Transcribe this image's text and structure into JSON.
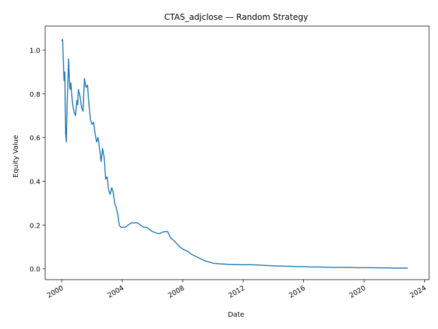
{
  "chart_data": {
    "type": "line",
    "title": "CTAS_adjclose — Random Strategy",
    "xlabel": "Date",
    "ylabel": "Equity Value",
    "x_ticks": [
      "2000",
      "2004",
      "2008",
      "2012",
      "2016",
      "2020",
      "2024"
    ],
    "y_ticks": [
      "0.0",
      "0.2",
      "0.4",
      "0.6",
      "0.8",
      "1.0"
    ],
    "xlim": [
      1998.9,
      2024.3
    ],
    "ylim": [
      -0.05,
      1.11
    ],
    "grid": false,
    "line_color": "#1f77b4",
    "series": [
      {
        "x": [
          2000.0,
          2000.05,
          2000.1,
          2000.15,
          2000.2,
          2000.25,
          2000.3,
          2000.35,
          2000.4,
          2000.45,
          2000.5,
          2000.55,
          2000.6,
          2000.7,
          2000.8,
          2000.9,
          2001.0,
          2001.05,
          2001.1,
          2001.2,
          2001.3,
          2001.4,
          2001.5,
          2001.6,
          2001.7,
          2001.8,
          2001.9,
          2002.0,
          2002.1,
          2002.2,
          2002.3,
          2002.4,
          2002.5,
          2002.6,
          2002.7,
          2002.8,
          2002.9,
          2003.0,
          2003.1,
          2003.2,
          2003.3,
          2003.4,
          2003.5,
          2003.6,
          2003.7,
          2003.8,
          2003.9,
          2004.0,
          2004.2,
          2004.4,
          2004.6,
          2004.8,
          2005.0,
          2005.2,
          2005.4,
          2005.6,
          2005.8,
          2006.0,
          2006.2,
          2006.4,
          2006.6,
          2006.8,
          2007.0,
          2007.2,
          2007.4,
          2007.6,
          2007.8,
          2008.0,
          2008.3,
          2008.6,
          2008.9,
          2009.2,
          2009.5,
          2009.8,
          2010.0,
          2010.5,
          2011.0,
          2011.5,
          2012.0,
          2012.5,
          2013.0,
          2013.5,
          2014.0,
          2014.5,
          2015.0,
          2015.5,
          2016.0,
          2016.5,
          2017.0,
          2017.5,
          2018.0,
          2018.5,
          2019.0,
          2019.5,
          2020.0,
          2020.5,
          2021.0,
          2021.5,
          2022.0,
          2022.5,
          2022.9
        ],
        "y": [
          1.04,
          1.05,
          0.95,
          0.86,
          0.9,
          0.62,
          0.58,
          0.75,
          0.84,
          0.96,
          0.86,
          0.82,
          0.85,
          0.76,
          0.72,
          0.7,
          0.77,
          0.75,
          0.82,
          0.79,
          0.74,
          0.72,
          0.87,
          0.83,
          0.84,
          0.75,
          0.68,
          0.66,
          0.67,
          0.62,
          0.58,
          0.6,
          0.55,
          0.49,
          0.55,
          0.51,
          0.41,
          0.42,
          0.36,
          0.34,
          0.37,
          0.35,
          0.3,
          0.28,
          0.25,
          0.2,
          0.19,
          0.19,
          0.19,
          0.2,
          0.21,
          0.21,
          0.21,
          0.2,
          0.19,
          0.19,
          0.18,
          0.17,
          0.165,
          0.16,
          0.165,
          0.17,
          0.17,
          0.14,
          0.13,
          0.115,
          0.1,
          0.09,
          0.08,
          0.065,
          0.055,
          0.045,
          0.035,
          0.03,
          0.025,
          0.022,
          0.02,
          0.019,
          0.018,
          0.018,
          0.017,
          0.015,
          0.013,
          0.012,
          0.011,
          0.01,
          0.009,
          0.008,
          0.008,
          0.007,
          0.006,
          0.006,
          0.006,
          0.005,
          0.005,
          0.005,
          0.004,
          0.004,
          0.003,
          0.003,
          0.003
        ]
      }
    ]
  }
}
